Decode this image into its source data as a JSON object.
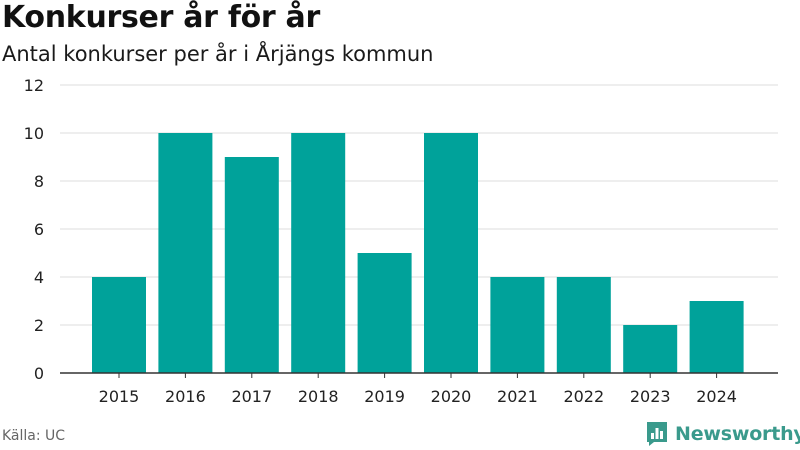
{
  "header": {
    "title": "Konkurser år för år",
    "subtitle": "Antal konkurser per år i Årjängs kommun"
  },
  "footer": {
    "source": "Källa: UC",
    "brand": "Newsworthy"
  },
  "icons": {
    "brand": "newsworthy-logo-icon"
  },
  "colors": {
    "bar": "#00a29a",
    "grid": "#dddddd",
    "axis": "#333333",
    "brand": "#3a9a8c"
  },
  "chart_data": {
    "type": "bar",
    "title": "Konkurser år för år",
    "subtitle": "Antal konkurser per år i Årjängs kommun",
    "xlabel": "",
    "ylabel": "",
    "categories": [
      "2015",
      "2016",
      "2017",
      "2018",
      "2019",
      "2020",
      "2021",
      "2022",
      "2023",
      "2024"
    ],
    "values": [
      4,
      10,
      9,
      10,
      5,
      10,
      4,
      4,
      2,
      3
    ],
    "ylim": [
      0,
      12
    ],
    "yticks": [
      0,
      2,
      4,
      6,
      8,
      10,
      12
    ],
    "grid": true,
    "legend": "none"
  }
}
